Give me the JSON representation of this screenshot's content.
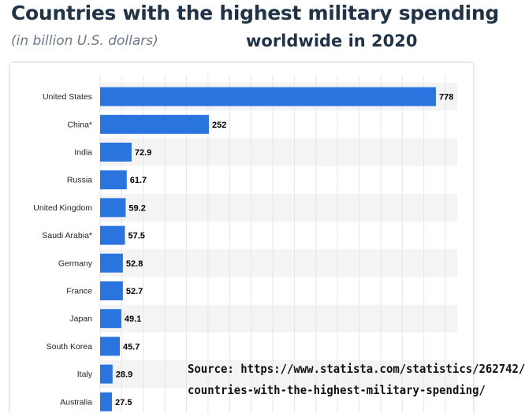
{
  "header": {
    "title_line1": "Countries with the highest military spending",
    "title_line2": "worldwide in 2020",
    "subtitle": "(in billion U.S. dollars)"
  },
  "source_note": {
    "line1": "Source: https://www.statista.com/statistics/262742/",
    "line2": "countries-with-the-highest-military-spending/"
  },
  "colors": {
    "bar": "#2a74e0",
    "grid": "#e6e6e6",
    "stripe": "#f4f4f4",
    "label": "#000000"
  },
  "chart_data": {
    "type": "bar",
    "orientation": "horizontal",
    "title": "Countries with the highest military spending worldwide in 2020",
    "subtitle": "(in billion U.S. dollars)",
    "categories": [
      "United States",
      "China*",
      "India",
      "Russia",
      "United Kingdom",
      "Saudi Arabia*",
      "Germany",
      "France",
      "Japan",
      "South Korea",
      "Italy",
      "Australia"
    ],
    "values": [
      778,
      252,
      72.9,
      61.7,
      59.2,
      57.5,
      52.8,
      52.7,
      49.1,
      45.7,
      28.9,
      27.5
    ],
    "value_labels": [
      "778",
      "252",
      "72.9",
      "61.7",
      "59.2",
      "57.5",
      "52.8",
      "52.7",
      "49.1",
      "45.7",
      "28.9",
      "27.5"
    ],
    "xlim": [
      0,
      800
    ],
    "grid": true,
    "legend": "none"
  }
}
